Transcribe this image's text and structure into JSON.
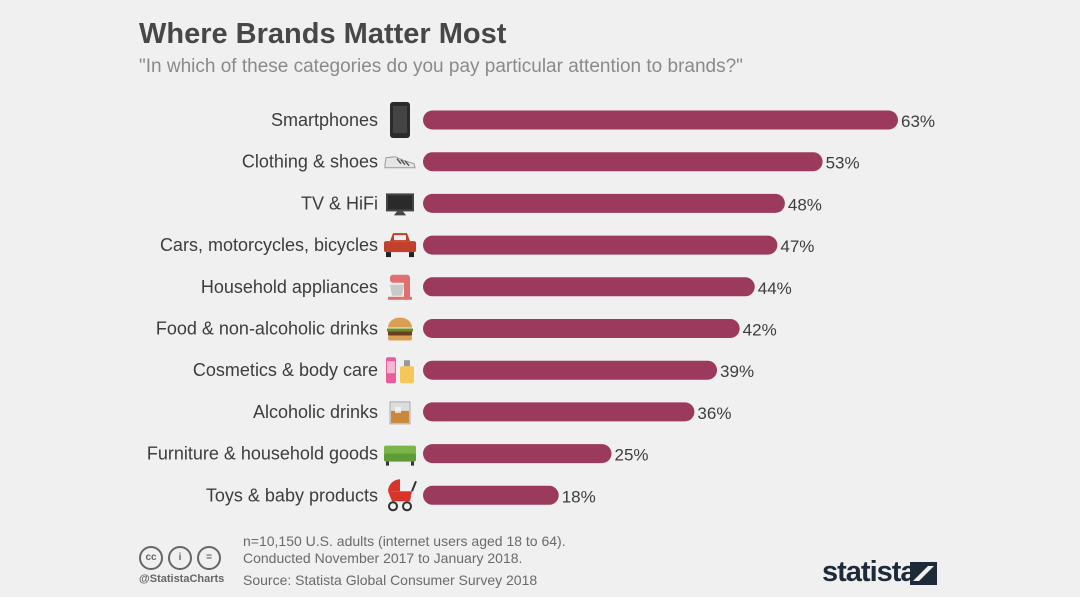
{
  "title": "Where Brands Matter Most",
  "subtitle": "\"In which of these categories do you pay particular attention to brands?\"",
  "chart_data": {
    "type": "bar",
    "orientation": "horizontal",
    "categories": [
      "Smartphones",
      "Clothing & shoes",
      "TV & HiFi",
      "Cars, motorcycles, bicycles",
      "Household appliances",
      "Food & non-alcoholic drinks",
      "Cosmetics & body care",
      "Alcoholic drinks",
      "Furniture & household goods",
      "Toys & baby products"
    ],
    "values": [
      63,
      53,
      48,
      47,
      44,
      42,
      39,
      36,
      25,
      18
    ],
    "value_labels": [
      "63%",
      "53%",
      "48%",
      "47%",
      "44%",
      "42%",
      "39%",
      "36%",
      "25%",
      "18%"
    ],
    "unit": "%",
    "xlim": [
      0,
      63
    ],
    "grid": false,
    "bar_color": "#9b3a5c",
    "icons": [
      "smartphone-icon",
      "sneaker-icon",
      "tv-icon",
      "car-icon",
      "stand-mixer-icon",
      "burger-icon",
      "cosmetics-icon",
      "whisky-glass-icon",
      "sofa-icon",
      "baby-stroller-icon"
    ]
  },
  "footer": {
    "note_line1": "n=10,150 U.S. adults (internet users aged 18 to 64).",
    "note_line2": "Conducted November 2017 to January 2018.",
    "source": "Source: Statista Global Consumer Survey 2018",
    "handle": "@StatistaCharts",
    "cc_labels": [
      "cc",
      "i",
      "="
    ],
    "logo_text": "statista"
  }
}
